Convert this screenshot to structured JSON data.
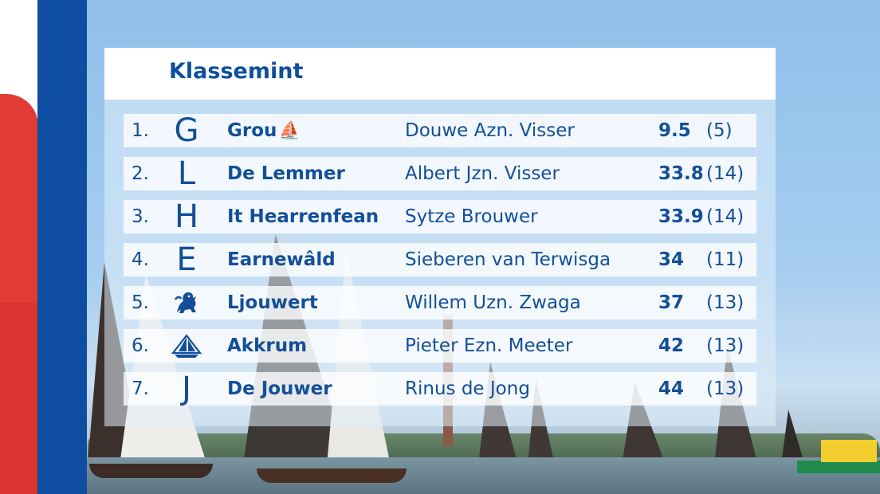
{
  "title": "Klassemint",
  "rows": [
    {
      "rank": "1.",
      "icon": "G",
      "icon_name": "grou-letter-icon",
      "town": "Grou",
      "town_suffix": "⛵",
      "skipper": "Douwe Azn. Visser",
      "score": "9.5",
      "races": "(5)"
    },
    {
      "rank": "2.",
      "icon": "L",
      "icon_name": "lemmer-letter-icon",
      "town": "De Lemmer",
      "town_suffix": "",
      "skipper": "Albert Jzn. Visser",
      "score": "33.8",
      "races": "(14)"
    },
    {
      "rank": "3.",
      "icon": "H",
      "icon_name": "heerenveen-letter-icon",
      "town": "It Hearrenfean",
      "town_suffix": "",
      "skipper": "Sytze Brouwer",
      "score": "33.9",
      "races": "(14)"
    },
    {
      "rank": "4.",
      "icon": "E",
      "icon_name": "earnewald-letter-icon",
      "town": "Earnewâld",
      "town_suffix": "",
      "skipper": "Sieberen van Terwisga",
      "score": "34",
      "races": "(11)"
    },
    {
      "rank": "5.",
      "icon": "",
      "icon_name": "lion-icon",
      "town": "Ljouwert",
      "town_suffix": "",
      "skipper": "Willem Uzn. Zwaga",
      "score": "37",
      "races": "(13)"
    },
    {
      "rank": "6.",
      "icon": "",
      "icon_name": "sail-emblem-icon",
      "town": "Akkrum",
      "town_suffix": "",
      "skipper": "Pieter Ezn. Meeter",
      "score": "42",
      "races": "(13)"
    },
    {
      "rank": "7.",
      "icon": "J",
      "icon_name": "joure-letter-icon",
      "town": "De Jouwer",
      "town_suffix": "",
      "skipper": "Rinus de Jong",
      "score": "44",
      "races": "(13)"
    }
  ],
  "colors": {
    "text": "#134f98",
    "brand_blue": "#0f4da2",
    "brand_red": "#e23a35"
  }
}
